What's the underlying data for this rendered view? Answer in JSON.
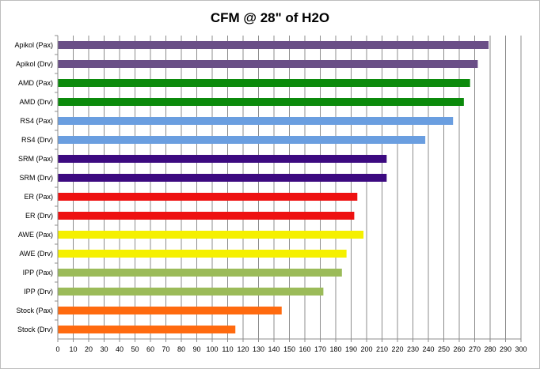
{
  "chart_data": {
    "type": "bar",
    "orientation": "horizontal",
    "title": "CFM @ 28\" of H2O",
    "xlabel": "",
    "ylabel": "",
    "xlim": [
      0,
      300
    ],
    "x_ticks": [
      "0",
      "10",
      "20",
      "30",
      "40",
      "50",
      "60",
      "70",
      "80",
      "90",
      "100",
      "110",
      "120",
      "130",
      "140",
      "150",
      "160",
      "170",
      "180",
      "190",
      "200",
      "210",
      "220",
      "230",
      "240",
      "250",
      "260",
      "270",
      "280",
      "290",
      "300"
    ],
    "grid": "vertical",
    "legend": "none",
    "categories": [
      "Apikol (Pax)",
      "Apikol (Drv)",
      "AMD (Pax)",
      "AMD (Drv)",
      "RS4 (Pax)",
      "RS4 (Drv)",
      "SRM (Pax)",
      "SRM (Drv)",
      "ER (Pax)",
      "ER (Drv)",
      "AWE (Pax)",
      "AWE (Drv)",
      "IPP (Pax)",
      "IPP (Drv)",
      "Stock (Pax)",
      "Stock (Drv)"
    ],
    "values": [
      279,
      272,
      267,
      263,
      256,
      238,
      213,
      213,
      194,
      192,
      198,
      187,
      184,
      172,
      145,
      115
    ],
    "colors": [
      "#6a4f87",
      "#6a4f87",
      "#0b8a0b",
      "#0b8a0b",
      "#6a9ee0",
      "#6a9ee0",
      "#3c0a80",
      "#3c0a80",
      "#ee1111",
      "#ee1111",
      "#f5f000",
      "#f5f000",
      "#9bbb59",
      "#9bbb59",
      "#ff6a0f",
      "#ff6a0f"
    ]
  }
}
